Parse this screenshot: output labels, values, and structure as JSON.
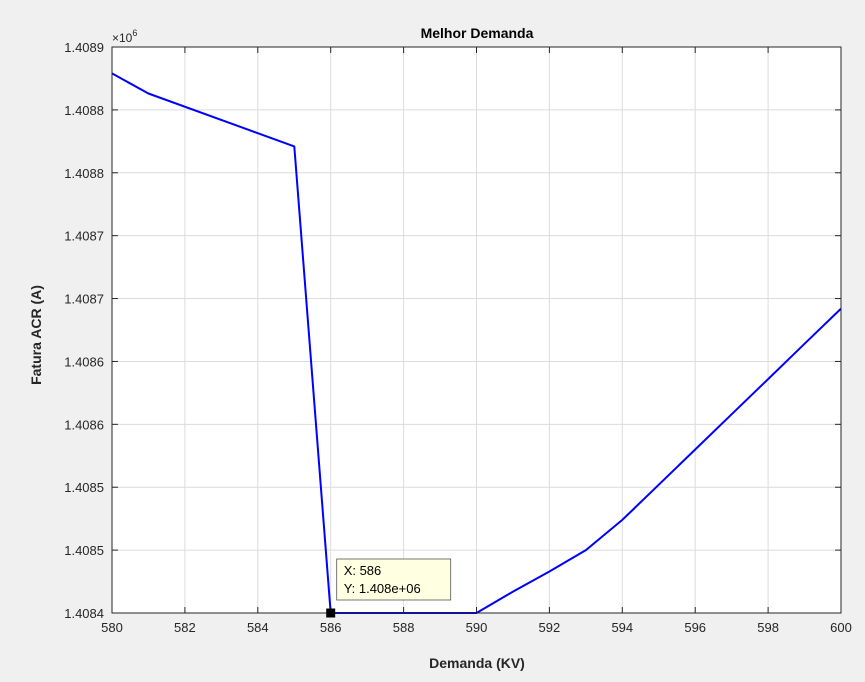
{
  "chart_data": {
    "type": "line",
    "title": "Melhor Demanda",
    "xlabel": "Demanda (KV)",
    "ylabel": "Fatura ACR (A)",
    "xlim": [
      580,
      600
    ],
    "ylim": [
      1408440,
      1408890
    ],
    "x_ticks": [
      580,
      582,
      584,
      586,
      588,
      590,
      592,
      594,
      596,
      598,
      600
    ],
    "x_tick_labels": [
      "580",
      "582",
      "584",
      "586",
      "588",
      "590",
      "592",
      "594",
      "596",
      "598",
      "600"
    ],
    "y_ticks": [
      1408440,
      1408490,
      1408540,
      1408590,
      1408640,
      1408690,
      1408740,
      1408790,
      1408840,
      1408890
    ],
    "y_tick_labels": [
      "1.4084",
      "1.4085",
      "1.4085",
      "1.4086",
      "1.4086",
      "1.4087",
      "1.4087",
      "1.4088",
      "1.4088",
      "1.4089"
    ],
    "y_exponent_label": "×10",
    "y_exponent_power": "6",
    "grid": true,
    "line_color": "#0000ff",
    "series": [
      {
        "x": [
          580,
          581,
          585,
          586,
          587,
          588,
          589,
          590,
          591,
          592,
          593,
          594,
          595,
          596,
          597,
          598,
          599,
          600
        ],
        "y": [
          1408869,
          1408853,
          1408811,
          1408440,
          1408440,
          1408440,
          1408440,
          1408440,
          1408457,
          1408473,
          1408490,
          1408514,
          1408542,
          1408570,
          1408598,
          1408626,
          1408654,
          1408682
        ]
      }
    ],
    "datatip": {
      "x": 586,
      "y": 1408440,
      "x_text": "X: 586",
      "y_text": "Y: 1.408e+06"
    }
  }
}
